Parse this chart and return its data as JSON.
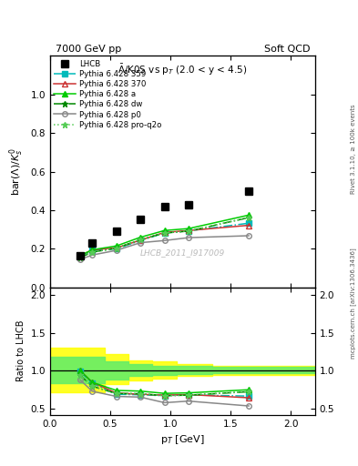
{
  "title_top": "7000 GeV pp",
  "title_right": "Soft QCD",
  "plot_title": "$\\bar{\\Lambda}$/K0S vs p$_{T}$ (2.0 < y < 4.5)",
  "ylabel_main": "bar($\\Lambda$)/$K_s^0$",
  "ylabel_ratio": "Ratio to LHCB",
  "xlabel": "p$_T$ [GeV]",
  "watermark": "LHCB_2011_I917009",
  "right_label": "mcplots.cern.ch [arXiv:1306.3436]",
  "rivet_label": "Rivet 3.1.10, ≥ 100k events",
  "xlim": [
    0.0,
    2.2
  ],
  "ylim_main": [
    0.0,
    1.2
  ],
  "ylim_ratio": [
    0.42,
    2.1
  ],
  "lhcb_x": [
    0.25,
    0.35,
    0.55,
    0.75,
    0.95,
    1.15,
    1.65
  ],
  "lhcb_y": [
    0.165,
    0.23,
    0.29,
    0.355,
    0.42,
    0.43,
    0.5
  ],
  "series": [
    {
      "label": "Pythia 6.428 359",
      "color": "#00bbbb",
      "linestyle": "-.",
      "marker": "s",
      "markerfacecolor": "#00bbbb",
      "markersize": 4,
      "x": [
        0.25,
        0.35,
        0.55,
        0.75,
        0.95,
        1.15,
        1.65
      ],
      "y": [
        0.163,
        0.192,
        0.2,
        0.243,
        0.282,
        0.293,
        0.333
      ]
    },
    {
      "label": "Pythia 6.428 370",
      "color": "#cc3333",
      "linestyle": "-",
      "marker": "^",
      "markerfacecolor": "none",
      "markersize": 5,
      "x": [
        0.25,
        0.35,
        0.55,
        0.75,
        0.95,
        1.15,
        1.65
      ],
      "y": [
        0.165,
        0.195,
        0.205,
        0.245,
        0.285,
        0.295,
        0.322
      ]
    },
    {
      "label": "Pythia 6.428 a",
      "color": "#00cc00",
      "linestyle": "-",
      "marker": "^",
      "markerfacecolor": "#00cc00",
      "markersize": 5,
      "x": [
        0.25,
        0.35,
        0.55,
        0.75,
        0.95,
        1.15,
        1.65
      ],
      "y": [
        0.165,
        0.195,
        0.215,
        0.26,
        0.295,
        0.305,
        0.375
      ]
    },
    {
      "label": "Pythia 6.428 dw",
      "color": "#008800",
      "linestyle": "-.",
      "marker": "*",
      "markerfacecolor": "#008800",
      "markersize": 5,
      "x": [
        0.25,
        0.35,
        0.55,
        0.75,
        0.95,
        1.15,
        1.65
      ],
      "y": [
        0.155,
        0.183,
        0.203,
        0.248,
        0.282,
        0.292,
        0.362
      ]
    },
    {
      "label": "Pythia 6.428 p0",
      "color": "#888888",
      "linestyle": "-",
      "marker": "o",
      "markerfacecolor": "none",
      "markersize": 4,
      "x": [
        0.25,
        0.35,
        0.55,
        0.75,
        0.95,
        1.15,
        1.65
      ],
      "y": [
        0.145,
        0.168,
        0.192,
        0.232,
        0.243,
        0.258,
        0.268
      ]
    },
    {
      "label": "Pythia 6.428 pro-q2o",
      "color": "#55cc55",
      "linestyle": ":",
      "marker": "*",
      "markerfacecolor": "#55cc55",
      "markersize": 5,
      "x": [
        0.25,
        0.35,
        0.55,
        0.75,
        0.95,
        1.15,
        1.65
      ],
      "y": [
        0.155,
        0.183,
        0.203,
        0.248,
        0.282,
        0.292,
        0.362
      ]
    }
  ],
  "ratio_series": [
    {
      "color": "#00bbbb",
      "linestyle": "-.",
      "marker": "s",
      "markerfacecolor": "#00bbbb",
      "markersize": 4,
      "x": [
        0.25,
        0.35,
        0.55,
        0.75,
        0.95,
        1.15,
        1.65
      ],
      "y": [
        0.988,
        0.835,
        0.69,
        0.684,
        0.671,
        0.682,
        0.666
      ]
    },
    {
      "color": "#cc3333",
      "linestyle": "-",
      "marker": "^",
      "markerfacecolor": "none",
      "markersize": 5,
      "x": [
        0.25,
        0.35,
        0.55,
        0.75,
        0.95,
        1.15,
        1.65
      ],
      "y": [
        1.0,
        0.848,
        0.707,
        0.69,
        0.679,
        0.686,
        0.644
      ]
    },
    {
      "color": "#00cc00",
      "linestyle": "-",
      "marker": "^",
      "markerfacecolor": "#00cc00",
      "markersize": 5,
      "x": [
        0.25,
        0.35,
        0.55,
        0.75,
        0.95,
        1.15,
        1.65
      ],
      "y": [
        1.0,
        0.848,
        0.741,
        0.732,
        0.702,
        0.709,
        0.75
      ]
    },
    {
      "color": "#008800",
      "linestyle": "-.",
      "marker": "*",
      "markerfacecolor": "#008800",
      "markersize": 5,
      "x": [
        0.25,
        0.35,
        0.55,
        0.75,
        0.95,
        1.15,
        1.65
      ],
      "y": [
        0.939,
        0.796,
        0.7,
        0.698,
        0.671,
        0.679,
        0.724
      ]
    },
    {
      "color": "#888888",
      "linestyle": "-",
      "marker": "o",
      "markerfacecolor": "none",
      "markersize": 4,
      "x": [
        0.25,
        0.35,
        0.55,
        0.75,
        0.95,
        1.15,
        1.65
      ],
      "y": [
        0.879,
        0.73,
        0.662,
        0.653,
        0.579,
        0.6,
        0.536
      ]
    },
    {
      "color": "#55cc55",
      "linestyle": ":",
      "marker": "*",
      "markerfacecolor": "#55cc55",
      "markersize": 5,
      "x": [
        0.25,
        0.35,
        0.55,
        0.75,
        0.95,
        1.15,
        1.65
      ],
      "y": [
        0.939,
        0.796,
        0.7,
        0.698,
        0.671,
        0.679,
        0.724
      ]
    }
  ],
  "band_yellow_x": [
    0.0,
    0.3,
    0.45,
    0.65,
    0.85,
    1.05,
    1.35,
    2.2
  ],
  "band_yellow_ylo": [
    0.72,
    0.72,
    0.82,
    0.87,
    0.9,
    0.93,
    0.95,
    0.95
  ],
  "band_yellow_yhi": [
    1.3,
    1.3,
    1.22,
    1.14,
    1.12,
    1.09,
    1.07,
    1.07
  ],
  "band_green_x": [
    0.0,
    0.3,
    0.45,
    0.65,
    0.85,
    1.05,
    1.35,
    2.2
  ],
  "band_green_ylo": [
    0.84,
    0.84,
    0.89,
    0.93,
    0.95,
    0.96,
    0.97,
    0.97
  ],
  "band_green_yhi": [
    1.18,
    1.18,
    1.13,
    1.09,
    1.07,
    1.06,
    1.05,
    1.05
  ]
}
